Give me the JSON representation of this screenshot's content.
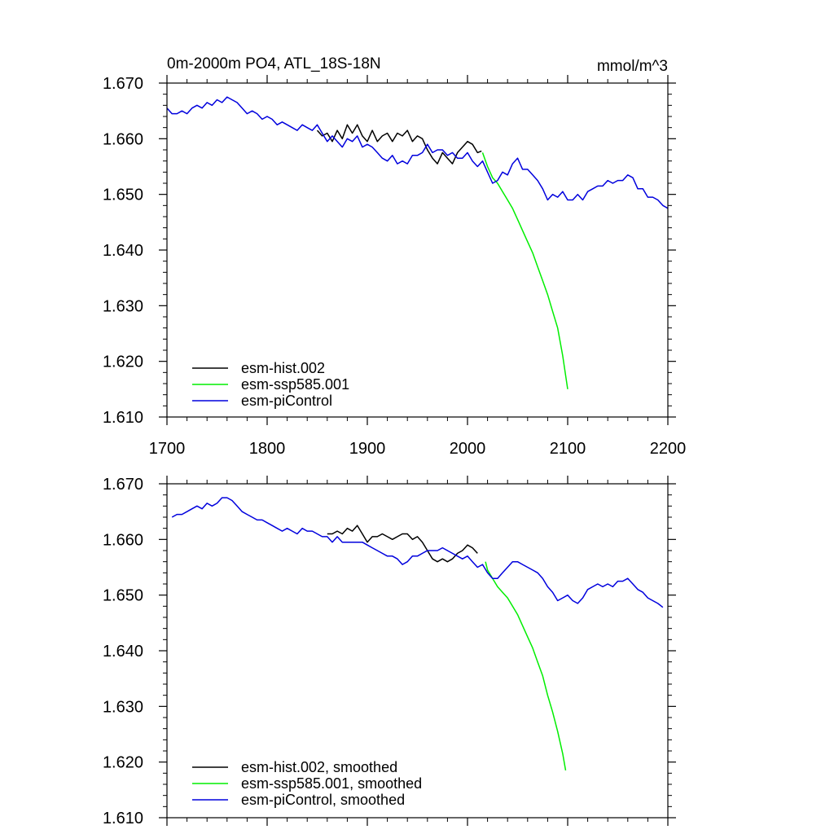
{
  "chart_data": [
    {
      "type": "line",
      "title": "0m-2000m PO4, ATL_18S-18N",
      "units": "mmol/m^3",
      "xlim": [
        1700,
        2200
      ],
      "ylim": [
        1.61,
        1.67
      ],
      "x_ticks": [
        1700,
        1800,
        1900,
        2000,
        2100,
        2200
      ],
      "x_tick_labels": [
        "1700",
        "1800",
        "1900",
        "2000",
        "2100",
        "2200"
      ],
      "y_ticks": [
        1.61,
        1.62,
        1.63,
        1.64,
        1.65,
        1.66,
        1.67
      ],
      "y_tick_labels": [
        "1.610",
        "1.620",
        "1.630",
        "1.640",
        "1.650",
        "1.660",
        "1.670"
      ],
      "grid": false,
      "legend_position": "bottom-left",
      "series": [
        {
          "name": "esm-hist.002",
          "color": "#000000",
          "x": [
            1850,
            1855,
            1860,
            1865,
            1870,
            1875,
            1880,
            1885,
            1890,
            1895,
            1900,
            1905,
            1910,
            1915,
            1920,
            1925,
            1930,
            1935,
            1940,
            1945,
            1950,
            1955,
            1960,
            1965,
            1970,
            1975,
            1980,
            1985,
            1990,
            1995,
            2000,
            2005,
            2010,
            2014
          ],
          "y": [
            1.6615,
            1.6605,
            1.661,
            1.6595,
            1.6615,
            1.66,
            1.6625,
            1.661,
            1.6625,
            1.6605,
            1.6595,
            1.6615,
            1.6595,
            1.6605,
            1.661,
            1.6595,
            1.661,
            1.6605,
            1.6615,
            1.6595,
            1.6605,
            1.66,
            1.658,
            1.6565,
            1.6555,
            1.6575,
            1.6565,
            1.6555,
            1.6575,
            1.6585,
            1.6595,
            1.659,
            1.6575,
            1.6578
          ]
        },
        {
          "name": "esm-ssp585.001",
          "color": "#00ee00",
          "x": [
            2015,
            2020,
            2025,
            2030,
            2035,
            2040,
            2045,
            2050,
            2055,
            2060,
            2065,
            2070,
            2075,
            2080,
            2085,
            2090,
            2095,
            2100
          ],
          "y": [
            1.6575,
            1.655,
            1.653,
            1.652,
            1.6505,
            1.649,
            1.6475,
            1.6455,
            1.6435,
            1.6415,
            1.6395,
            1.637,
            1.6345,
            1.632,
            1.629,
            1.626,
            1.621,
            1.615
          ]
        },
        {
          "name": "esm-piControl",
          "color": "#0000dd",
          "x": [
            1700,
            1705,
            1710,
            1715,
            1720,
            1725,
            1730,
            1735,
            1740,
            1745,
            1750,
            1755,
            1760,
            1765,
            1770,
            1775,
            1780,
            1785,
            1790,
            1795,
            1800,
            1805,
            1810,
            1815,
            1820,
            1825,
            1830,
            1835,
            1840,
            1845,
            1850,
            1855,
            1860,
            1865,
            1870,
            1875,
            1880,
            1885,
            1890,
            1895,
            1900,
            1905,
            1910,
            1915,
            1920,
            1925,
            1930,
            1935,
            1940,
            1945,
            1950,
            1955,
            1960,
            1965,
            1970,
            1975,
            1980,
            1985,
            1990,
            1995,
            2000,
            2005,
            2010,
            2015,
            2020,
            2025,
            2030,
            2035,
            2040,
            2045,
            2050,
            2055,
            2060,
            2065,
            2070,
            2075,
            2080,
            2085,
            2090,
            2095,
            2100,
            2105,
            2110,
            2115,
            2120,
            2125,
            2130,
            2135,
            2140,
            2145,
            2150,
            2155,
            2160,
            2165,
            2170,
            2175,
            2180,
            2185,
            2190,
            2195,
            2200
          ],
          "y": [
            1.6655,
            1.6645,
            1.6645,
            1.665,
            1.6645,
            1.6655,
            1.666,
            1.6655,
            1.6665,
            1.666,
            1.667,
            1.6665,
            1.6675,
            1.667,
            1.6665,
            1.6655,
            1.6645,
            1.665,
            1.6645,
            1.6635,
            1.664,
            1.6635,
            1.6625,
            1.663,
            1.6625,
            1.662,
            1.6615,
            1.6625,
            1.662,
            1.6615,
            1.6625,
            1.661,
            1.6595,
            1.6605,
            1.6595,
            1.6585,
            1.66,
            1.6595,
            1.6605,
            1.6585,
            1.659,
            1.6585,
            1.6575,
            1.6565,
            1.656,
            1.657,
            1.6555,
            1.656,
            1.6555,
            1.657,
            1.657,
            1.6575,
            1.659,
            1.6575,
            1.658,
            1.658,
            1.657,
            1.6575,
            1.6565,
            1.6565,
            1.6575,
            1.656,
            1.655,
            1.656,
            1.654,
            1.652,
            1.6525,
            1.654,
            1.6535,
            1.6555,
            1.6565,
            1.6545,
            1.6545,
            1.6535,
            1.6525,
            1.651,
            1.649,
            1.65,
            1.6495,
            1.6505,
            1.649,
            1.649,
            1.65,
            1.649,
            1.6505,
            1.651,
            1.6515,
            1.6515,
            1.6525,
            1.652,
            1.6525,
            1.6525,
            1.6535,
            1.653,
            1.651,
            1.651,
            1.6495,
            1.6495,
            1.649,
            1.648,
            1.6475
          ]
        }
      ]
    },
    {
      "type": "line",
      "xlim": [
        1700,
        2200
      ],
      "ylim": [
        1.61,
        1.67
      ],
      "x_ticks": [
        1700,
        1800,
        1900,
        2000,
        2100,
        2200
      ],
      "y_ticks": [
        1.61,
        1.62,
        1.63,
        1.64,
        1.65,
        1.66,
        1.67
      ],
      "y_tick_labels": [
        "1.610",
        "1.620",
        "1.630",
        "1.640",
        "1.650",
        "1.660",
        "1.670"
      ],
      "grid": false,
      "legend_position": "bottom-left",
      "series": [
        {
          "name": "esm-hist.002, smoothed",
          "color": "#000000",
          "x": [
            1860,
            1865,
            1870,
            1875,
            1880,
            1885,
            1890,
            1895,
            1900,
            1905,
            1910,
            1915,
            1920,
            1925,
            1930,
            1935,
            1940,
            1945,
            1950,
            1955,
            1960,
            1965,
            1970,
            1975,
            1980,
            1985,
            1990,
            1995,
            2000,
            2005,
            2010
          ],
          "y": [
            1.661,
            1.661,
            1.6615,
            1.661,
            1.662,
            1.6615,
            1.6625,
            1.661,
            1.6595,
            1.6605,
            1.6605,
            1.661,
            1.6605,
            1.66,
            1.6605,
            1.661,
            1.661,
            1.66,
            1.6605,
            1.6595,
            1.658,
            1.6565,
            1.656,
            1.6565,
            1.656,
            1.6565,
            1.6575,
            1.658,
            1.659,
            1.6585,
            1.6575
          ]
        },
        {
          "name": "esm-ssp585.001, smoothed",
          "color": "#00ee00",
          "x": [
            2018,
            2020,
            2025,
            2030,
            2035,
            2040,
            2045,
            2050,
            2055,
            2060,
            2065,
            2070,
            2075,
            2080,
            2085,
            2090,
            2095,
            2098
          ],
          "y": [
            1.656,
            1.6545,
            1.653,
            1.6515,
            1.6505,
            1.6495,
            1.648,
            1.6465,
            1.6445,
            1.6425,
            1.6405,
            1.638,
            1.6355,
            1.632,
            1.629,
            1.6255,
            1.6215,
            1.6185
          ]
        },
        {
          "name": "esm-piControl, smoothed",
          "color": "#0000dd",
          "x": [
            1705,
            1710,
            1715,
            1720,
            1725,
            1730,
            1735,
            1740,
            1745,
            1750,
            1755,
            1760,
            1765,
            1770,
            1775,
            1780,
            1785,
            1790,
            1795,
            1800,
            1805,
            1810,
            1815,
            1820,
            1825,
            1830,
            1835,
            1840,
            1845,
            1850,
            1855,
            1860,
            1865,
            1870,
            1875,
            1880,
            1885,
            1890,
            1895,
            1900,
            1905,
            1910,
            1915,
            1920,
            1925,
            1930,
            1935,
            1940,
            1945,
            1950,
            1955,
            1960,
            1965,
            1970,
            1975,
            1980,
            1985,
            1990,
            1995,
            2000,
            2005,
            2010,
            2015,
            2020,
            2025,
            2030,
            2035,
            2040,
            2045,
            2050,
            2055,
            2060,
            2065,
            2070,
            2075,
            2080,
            2085,
            2090,
            2095,
            2100,
            2105,
            2110,
            2115,
            2120,
            2125,
            2130,
            2135,
            2140,
            2145,
            2150,
            2155,
            2160,
            2165,
            2170,
            2175,
            2180,
            2185,
            2190,
            2195
          ],
          "y": [
            1.664,
            1.6645,
            1.6645,
            1.665,
            1.6655,
            1.666,
            1.6655,
            1.6665,
            1.666,
            1.6665,
            1.6675,
            1.6675,
            1.667,
            1.666,
            1.665,
            1.6645,
            1.664,
            1.6635,
            1.6635,
            1.663,
            1.6625,
            1.662,
            1.6615,
            1.662,
            1.6615,
            1.661,
            1.662,
            1.6615,
            1.6615,
            1.661,
            1.6605,
            1.6605,
            1.6595,
            1.6605,
            1.6595,
            1.6595,
            1.6595,
            1.6595,
            1.6595,
            1.659,
            1.6585,
            1.658,
            1.6575,
            1.657,
            1.657,
            1.6565,
            1.6555,
            1.656,
            1.657,
            1.657,
            1.6575,
            1.658,
            1.658,
            1.658,
            1.6585,
            1.658,
            1.6575,
            1.657,
            1.6565,
            1.657,
            1.656,
            1.655,
            1.6555,
            1.654,
            1.653,
            1.653,
            1.654,
            1.655,
            1.656,
            1.656,
            1.6555,
            1.655,
            1.6545,
            1.654,
            1.653,
            1.6515,
            1.6505,
            1.649,
            1.6495,
            1.65,
            1.649,
            1.6485,
            1.6495,
            1.651,
            1.6515,
            1.652,
            1.6515,
            1.652,
            1.6515,
            1.6525,
            1.6525,
            1.653,
            1.652,
            1.651,
            1.6505,
            1.6495,
            1.649,
            1.6485,
            1.6478
          ]
        }
      ]
    }
  ]
}
